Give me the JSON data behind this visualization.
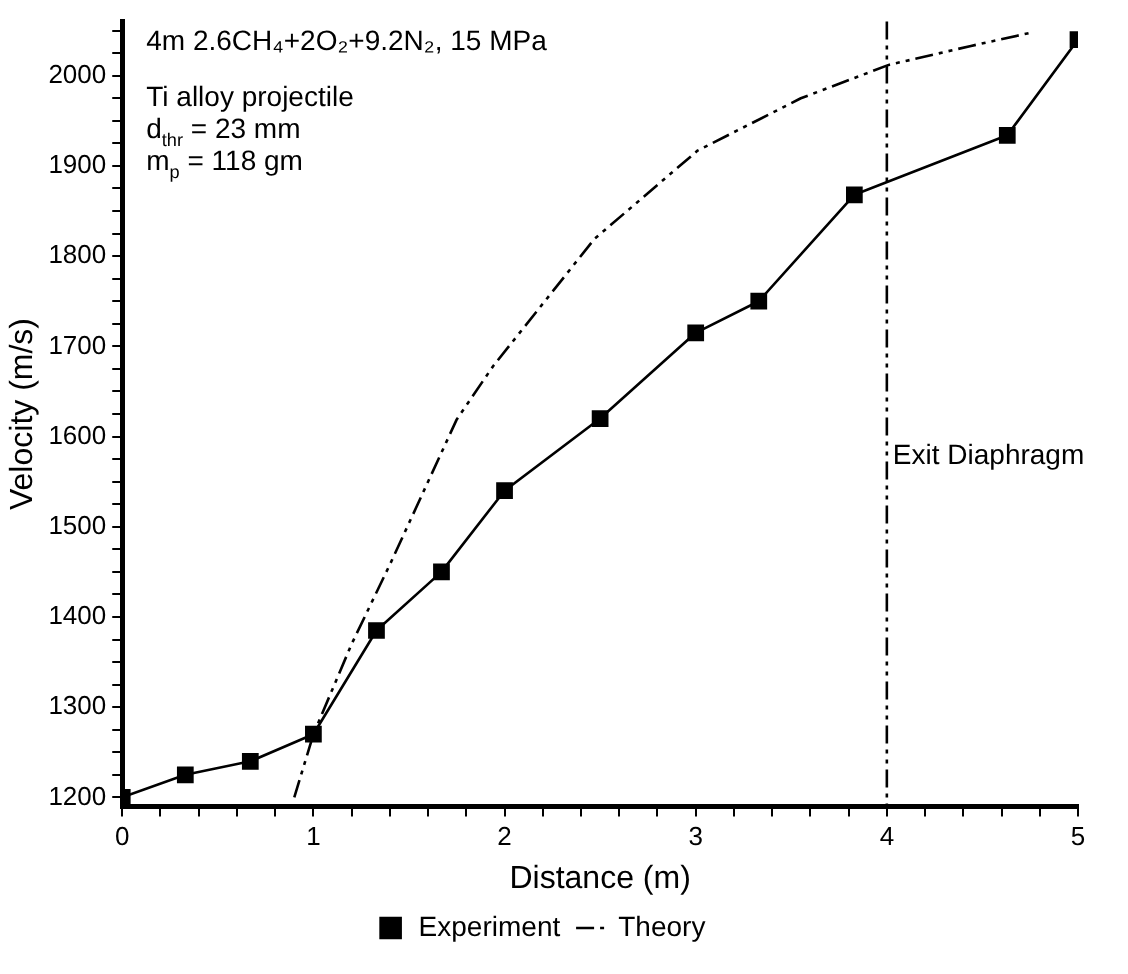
{
  "chart_data": {
    "type": "line",
    "title": "4m 2.6CH₄+2O₂+9.2N₂, 15 MPa",
    "annotations": [
      "Ti alloy projectile",
      "d$_{thr}$ = 23 mm",
      "m$_{p}$ = 118 gm"
    ],
    "xlabel": "Distance (m)",
    "ylabel": "Velocity (m/s)",
    "series": [
      {
        "name": "Experiment",
        "color": "#000000",
        "marker": "square",
        "line_style": "solid",
        "x": [
          0,
          0.33,
          0.67,
          1.0,
          1.33,
          1.67,
          2.0,
          2.5,
          3.0,
          3.33,
          3.83,
          4.63,
          5.0
        ],
        "values": [
          1200,
          1225,
          1240,
          1270,
          1385,
          1450,
          1540,
          1620,
          1715,
          1750,
          1868,
          1934,
          2040
        ]
      },
      {
        "name": "Theory",
        "color": "#000000",
        "marker": "none",
        "line_style": "dashed",
        "x": [
          0.9,
          1.0,
          1.2,
          1.4,
          1.75,
          1.94,
          2.47,
          3.01,
          3.55,
          4.01,
          4.44,
          4.76
        ],
        "values": [
          1200,
          1270,
          1370,
          1458,
          1619,
          1678,
          1819,
          1917,
          1975,
          2012,
          2033,
          2048
        ]
      }
    ],
    "ref_lines": [
      {
        "axis": "x",
        "value": 4,
        "label": "Exit Diaphragm",
        "line_style": "dashed",
        "color": "#000000"
      }
    ],
    "legend": "bottom",
    "grid": false,
    "xlim": [
      0,
      5
    ],
    "ylim": [
      1190,
      2060
    ],
    "xticks": [
      0,
      {
        "value": 0.2,
        "label": null
      },
      {
        "value": 0.4,
        "label": null
      },
      {
        "value": 0.6,
        "label": null
      },
      {
        "value": 0.8,
        "label": null
      },
      1,
      {
        "value": 1.2,
        "label": null
      },
      {
        "value": 1.4,
        "label": null
      },
      {
        "value": 1.6,
        "label": null
      },
      {
        "value": 1.8,
        "label": null
      },
      2,
      {
        "value": 2.2,
        "label": null
      },
      {
        "value": 2.4,
        "label": null
      },
      {
        "value": 2.6,
        "label": null
      },
      {
        "value": 2.8,
        "label": null
      },
      3,
      {
        "value": 3.2,
        "label": null
      },
      {
        "value": 3.4,
        "label": null
      },
      {
        "value": 3.6,
        "label": null
      },
      {
        "value": 3.8,
        "label": null
      },
      4,
      {
        "value": 4.2,
        "label": null
      },
      {
        "value": 4.4,
        "label": null
      },
      {
        "value": 4.6,
        "label": null
      },
      {
        "value": 4.8,
        "label": null
      },
      5
    ],
    "yticks": [
      1200,
      {
        "value": 1225,
        "label": null
      },
      {
        "value": 1250,
        "label": null
      },
      {
        "value": 1275,
        "label": null
      },
      1300,
      {
        "value": 1325,
        "label": null
      },
      {
        "value": 1350,
        "label": null
      },
      {
        "value": 1375,
        "label": null
      },
      1400,
      {
        "value": 1425,
        "label": null
      },
      {
        "value": 1450,
        "label": null
      },
      {
        "value": 1475,
        "label": null
      },
      1500,
      {
        "value": 1525,
        "label": null
      },
      {
        "value": 1550,
        "label": null
      },
      {
        "value": 1575,
        "label": null
      },
      1600,
      {
        "value": 1625,
        "label": null
      },
      {
        "value": 1650,
        "label": null
      },
      {
        "value": 1675,
        "label": null
      },
      1700,
      {
        "value": 1725,
        "label": null
      },
      {
        "value": 1750,
        "label": null
      },
      {
        "value": 1775,
        "label": null
      },
      1800,
      {
        "value": 1825,
        "label": null
      },
      {
        "value": 1850,
        "label": null
      },
      {
        "value": 1875,
        "label": null
      },
      1900,
      {
        "value": 1925,
        "label": null
      },
      {
        "value": 1950,
        "label": null
      },
      {
        "value": 1975,
        "label": null
      },
      2000,
      {
        "value": 2025,
        "label": null
      },
      {
        "value": 2050,
        "label": null
      }
    ]
  }
}
